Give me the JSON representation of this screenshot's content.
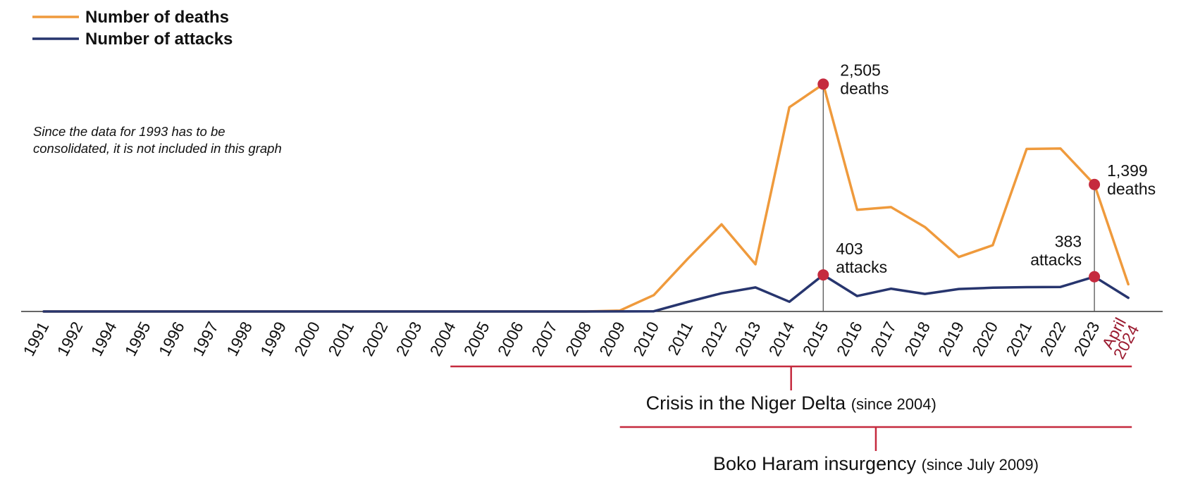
{
  "legend": {
    "deaths_label": "Number of deaths",
    "attacks_label": "Number of attacks"
  },
  "note": {
    "line1": "Since the data for 1993 has to be",
    "line2": "consolidated, it is not included in this graph"
  },
  "colors": {
    "deaths": "#ef9a3c",
    "attacks": "#27356e",
    "highlight": "#c52a3e",
    "period_line": "#c52a3e",
    "last_tick": "#9b1b30",
    "axis": "#333333"
  },
  "chart_data": {
    "type": "line",
    "x": [
      "1991",
      "1992",
      "1994",
      "1995",
      "1996",
      "1997",
      "1998",
      "1999",
      "2000",
      "2001",
      "2002",
      "2003",
      "2004",
      "2005",
      "2006",
      "2007",
      "2008",
      "2009",
      "2010",
      "2011",
      "2012",
      "2013",
      "2014",
      "2015",
      "2016",
      "2017",
      "2018",
      "2019",
      "2020",
      "2021",
      "2022",
      "2023",
      "April 2024"
    ],
    "series": [
      {
        "name": "Number of deaths",
        "color": "#ef9a3c",
        "values": [
          0,
          0,
          0,
          0,
          0,
          0,
          0,
          0,
          0,
          0,
          0,
          0,
          0,
          0,
          0,
          0,
          0,
          10,
          180,
          580,
          960,
          520,
          2250,
          2505,
          1120,
          1150,
          930,
          600,
          730,
          1790,
          1795,
          1399,
          300
        ]
      },
      {
        "name": "Number of attacks",
        "color": "#27356e",
        "values": [
          0,
          0,
          0,
          0,
          0,
          0,
          0,
          0,
          0,
          0,
          0,
          0,
          0,
          0,
          0,
          0,
          0,
          1,
          2,
          105,
          200,
          265,
          107,
          403,
          170,
          251,
          193,
          248,
          262,
          268,
          270,
          383,
          151
        ]
      }
    ],
    "highlights": [
      {
        "x": "2015",
        "series": "Number of deaths",
        "value": 2505,
        "label_value": "2,505",
        "label_unit": "deaths"
      },
      {
        "x": "2015",
        "series": "Number of attacks",
        "value": 403,
        "label_value": "403",
        "label_unit": "attacks"
      },
      {
        "x": "2023",
        "series": "Number of deaths",
        "value": 1399,
        "label_value": "1,399",
        "label_unit": "deaths"
      },
      {
        "x": "2023",
        "series": "Number of attacks",
        "value": 383,
        "label_value": "383",
        "label_unit": "attacks"
      }
    ],
    "periods": [
      {
        "name": "Crisis in the Niger Delta",
        "since": "(since 2004)",
        "start": "2004",
        "end": "April 2024"
      },
      {
        "name": "Boko Haram insurgency",
        "since": "(since July 2009)",
        "start": "2009",
        "end": "April 2024"
      }
    ],
    "xlabel": "",
    "ylabel": "",
    "grid": false,
    "legend_position": "top-left"
  }
}
